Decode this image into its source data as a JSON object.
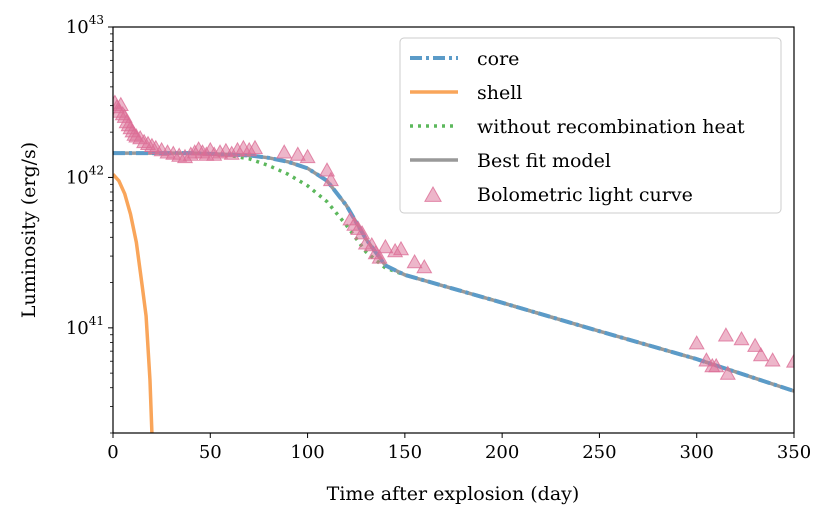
{
  "chart_data": {
    "type": "line",
    "xlabel": "Time after explosion (day)",
    "ylabel": "Luminosity (erg/s)",
    "xlim": [
      0,
      350
    ],
    "ylim": [
      2e+40,
      1e+43
    ],
    "yscale": "log",
    "grid": false,
    "legend_position": "top-right",
    "x_ticks": [
      0,
      50,
      100,
      150,
      200,
      250,
      300,
      350
    ],
    "y_ticks": [
      {
        "value": 1e+41,
        "base": "10",
        "exp": "41"
      },
      {
        "value": 1e+42,
        "base": "10",
        "exp": "42"
      },
      {
        "value": 1e+43,
        "base": "10",
        "exp": "43"
      }
    ],
    "colors": {
      "core": "#5b9bc8",
      "shell": "#f9a55a",
      "without_recombination": "#5cb85c",
      "best_fit": "#999999",
      "observed": "#dc6e96"
    },
    "series": [
      {
        "name": "core",
        "style": "dashdot",
        "points": [
          [
            0,
            1.45e+42
          ],
          [
            20,
            1.45e+42
          ],
          [
            40,
            1.45e+42
          ],
          [
            60,
            1.42e+42
          ],
          [
            70,
            1.4e+42
          ],
          [
            80,
            1.35e+42
          ],
          [
            90,
            1.27e+42
          ],
          [
            100,
            1.15e+42
          ],
          [
            110,
            9.5e+41
          ],
          [
            120,
            6.5e+41
          ],
          [
            130,
            3.9e+41
          ],
          [
            140,
            2.6e+41
          ],
          [
            150,
            2.25e+41
          ],
          [
            200,
            1.47e+41
          ],
          [
            250,
            9.5e+40
          ],
          [
            300,
            6.2e+40
          ],
          [
            350,
            3.8e+40
          ]
        ]
      },
      {
        "name": "shell",
        "style": "solid",
        "points": [
          [
            0,
            1.05e+42
          ],
          [
            3,
            9.5e+41
          ],
          [
            6,
            7.8e+41
          ],
          [
            9,
            5.7e+41
          ],
          [
            12,
            3.7e+41
          ],
          [
            15,
            1.9e+41
          ],
          [
            17,
            1.2e+41
          ],
          [
            19,
            4.5e+40
          ],
          [
            20,
            2e+40
          ]
        ]
      },
      {
        "name": "without recombination heat",
        "style": "dotted",
        "points": [
          [
            0,
            1.45e+42
          ],
          [
            40,
            1.45e+42
          ],
          [
            60,
            1.4e+42
          ],
          [
            70,
            1.33e+42
          ],
          [
            80,
            1.2e+42
          ],
          [
            90,
            1.05e+42
          ],
          [
            100,
            8.8e+41
          ],
          [
            110,
            6.9e+41
          ],
          [
            120,
            4.8e+41
          ],
          [
            130,
            3.2e+41
          ],
          [
            140,
            2.5e+41
          ],
          [
            150,
            2.25e+41
          ],
          [
            200,
            1.47e+41
          ],
          [
            250,
            9.5e+40
          ],
          [
            300,
            6.2e+40
          ],
          [
            350,
            3.8e+40
          ]
        ]
      },
      {
        "name": "Best fit model",
        "style": "solid",
        "points": [
          [
            0,
            1.45e+42
          ],
          [
            20,
            1.45e+42
          ],
          [
            40,
            1.45e+42
          ],
          [
            60,
            1.42e+42
          ],
          [
            70,
            1.4e+42
          ],
          [
            80,
            1.35e+42
          ],
          [
            90,
            1.27e+42
          ],
          [
            100,
            1.15e+42
          ],
          [
            110,
            9.5e+41
          ],
          [
            120,
            6.5e+41
          ],
          [
            130,
            3.9e+41
          ],
          [
            140,
            2.6e+41
          ],
          [
            150,
            2.25e+41
          ],
          [
            200,
            1.47e+41
          ],
          [
            250,
            9.5e+40
          ],
          [
            300,
            6.2e+40
          ],
          [
            350,
            3.8e+40
          ]
        ]
      },
      {
        "name": "Bolometric light curve",
        "style": "marker-triangle",
        "points": [
          [
            1,
            3.1e+42
          ],
          [
            2,
            2.9e+42
          ],
          [
            3,
            2.7e+42
          ],
          [
            4,
            3e+42
          ],
          [
            5,
            2.6e+42
          ],
          [
            6,
            2.5e+42
          ],
          [
            7,
            2.3e+42
          ],
          [
            8,
            2.2e+42
          ],
          [
            9,
            2.1e+42
          ],
          [
            10,
            2e+42
          ],
          [
            11,
            1.9e+42
          ],
          [
            12,
            1.85e+42
          ],
          [
            14,
            1.8e+42
          ],
          [
            16,
            1.7e+42
          ],
          [
            18,
            1.65e+42
          ],
          [
            20,
            1.6e+42
          ],
          [
            22,
            1.55e+42
          ],
          [
            25,
            1.5e+42
          ],
          [
            28,
            1.45e+42
          ],
          [
            31,
            1.42e+42
          ],
          [
            34,
            1.38e+42
          ],
          [
            37,
            1.35e+42
          ],
          [
            40,
            1.4e+42
          ],
          [
            42,
            1.45e+42
          ],
          [
            44,
            1.52e+42
          ],
          [
            46,
            1.45e+42
          ],
          [
            48,
            1.4e+42
          ],
          [
            50,
            1.5e+42
          ],
          [
            52,
            1.4e+42
          ],
          [
            55,
            1.45e+42
          ],
          [
            58,
            1.48e+42
          ],
          [
            61,
            1.42e+42
          ],
          [
            64,
            1.5e+42
          ],
          [
            67,
            1.55e+42
          ],
          [
            70,
            1.5e+42
          ],
          [
            73,
            1.55e+42
          ],
          [
            88,
            1.45e+42
          ],
          [
            95,
            1.4e+42
          ],
          [
            100,
            1.35e+42
          ],
          [
            110,
            1.1e+42
          ],
          [
            112,
            9.5e+41
          ],
          [
            122,
            5.2e+41
          ],
          [
            124,
            4.8e+41
          ],
          [
            126,
            4.5e+41
          ],
          [
            128,
            4.2e+41
          ],
          [
            130,
            3.6e+41
          ],
          [
            133,
            3.5e+41
          ],
          [
            135,
            3.1e+41
          ],
          [
            137,
            2.9e+41
          ],
          [
            140,
            3.4e+41
          ],
          [
            145,
            3.2e+41
          ],
          [
            148,
            3.3e+41
          ],
          [
            155,
            2.7e+41
          ],
          [
            160,
            2.5e+41
          ],
          [
            300,
            7.8e+40
          ],
          [
            305,
            6e+40
          ],
          [
            308,
            5.5e+40
          ],
          [
            310,
            5.5e+40
          ],
          [
            315,
            8.8e+40
          ],
          [
            316,
            4.9e+40
          ],
          [
            323,
            8.3e+40
          ],
          [
            330,
            7.5e+40
          ],
          [
            333,
            6.5e+40
          ],
          [
            339,
            6e+40
          ],
          [
            350,
            5.9e+40
          ]
        ]
      }
    ],
    "legend": [
      {
        "label": "core",
        "key": "core"
      },
      {
        "label": "shell",
        "key": "shell"
      },
      {
        "label": "without recombination heat",
        "key": "without_recombination"
      },
      {
        "label": "Best fit model",
        "key": "best_fit"
      },
      {
        "label": "Bolometric light curve",
        "key": "observed"
      }
    ]
  }
}
